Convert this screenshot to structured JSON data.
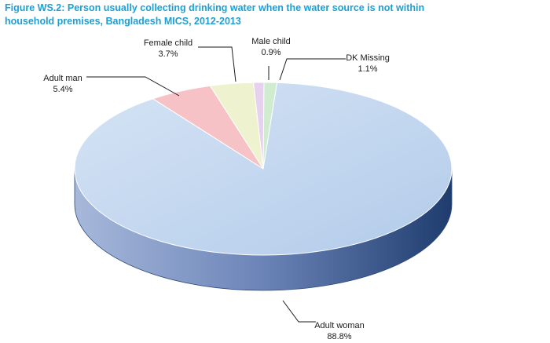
{
  "title_line1": "Figure WS.2: Person usually collecting drinking water when the water source is not within",
  "title_line2": "household premises, Bangladesh MICS, 2012-2013",
  "chart_data": {
    "type": "pie",
    "style": "3d",
    "title": "Figure WS.2: Person usually collecting drinking water when the water source is not within household premises, Bangladesh MICS, 2012-2013",
    "slices": [
      {
        "name": "Adult woman",
        "value": 88.8,
        "label": "88.8%",
        "color": "#bcd3ee"
      },
      {
        "name": "Adult man",
        "value": 5.4,
        "label": "5.4%",
        "color": "#f6c2c6"
      },
      {
        "name": "Female child",
        "value": 3.7,
        "label": "3.7%",
        "color": "#eef2cf"
      },
      {
        "name": "Male child",
        "value": 0.9,
        "label": "0.9%",
        "color": "#e6d2ee"
      },
      {
        "name": "DK Missing",
        "value": 1.1,
        "label": "1.1%",
        "color": "#cfeccf"
      }
    ],
    "side_color": "#3d5d94",
    "legend": "none"
  }
}
